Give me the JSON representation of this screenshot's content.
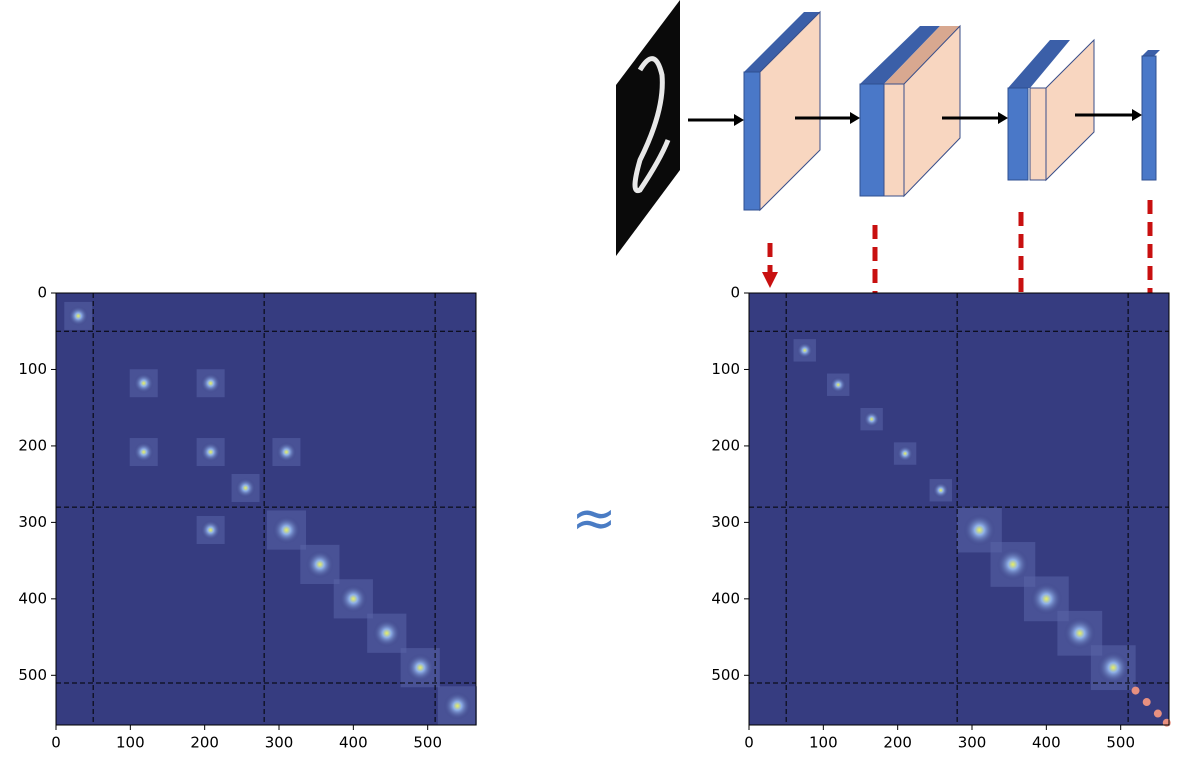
{
  "chart_data": [
    {
      "type": "heatmap",
      "xlim": [
        0,
        565
      ],
      "ylim": [
        565,
        0
      ],
      "xticks": [
        0,
        100,
        200,
        300,
        400,
        500
      ],
      "yticks": [
        0,
        100,
        200,
        300,
        400,
        500
      ],
      "dividers": [
        50,
        280,
        510
      ],
      "highlights": {
        "x": [
          30,
          118,
          208,
          255,
          310,
          355,
          400,
          445,
          490,
          208,
          118,
          310,
          208,
          540
        ],
        "y": [
          30,
          118,
          208,
          255,
          310,
          355,
          400,
          445,
          490,
          118,
          208,
          208,
          310,
          540
        ]
      }
    },
    {
      "type": "heatmap",
      "xlim": [
        0,
        565
      ],
      "ylim": [
        565,
        0
      ],
      "xticks": [
        0,
        100,
        200,
        300,
        400,
        500
      ],
      "yticks": [
        0,
        100,
        200,
        300,
        400,
        500
      ],
      "dividers": [
        50,
        280,
        510
      ],
      "highlights": {
        "x": [
          75,
          120,
          165,
          210,
          258,
          310,
          355,
          400,
          445,
          490,
          520,
          535,
          550,
          562
        ],
        "y": [
          75,
          120,
          165,
          210,
          258,
          310,
          355,
          400,
          445,
          490,
          520,
          535,
          550,
          562
        ]
      }
    }
  ],
  "symbol": "≈"
}
